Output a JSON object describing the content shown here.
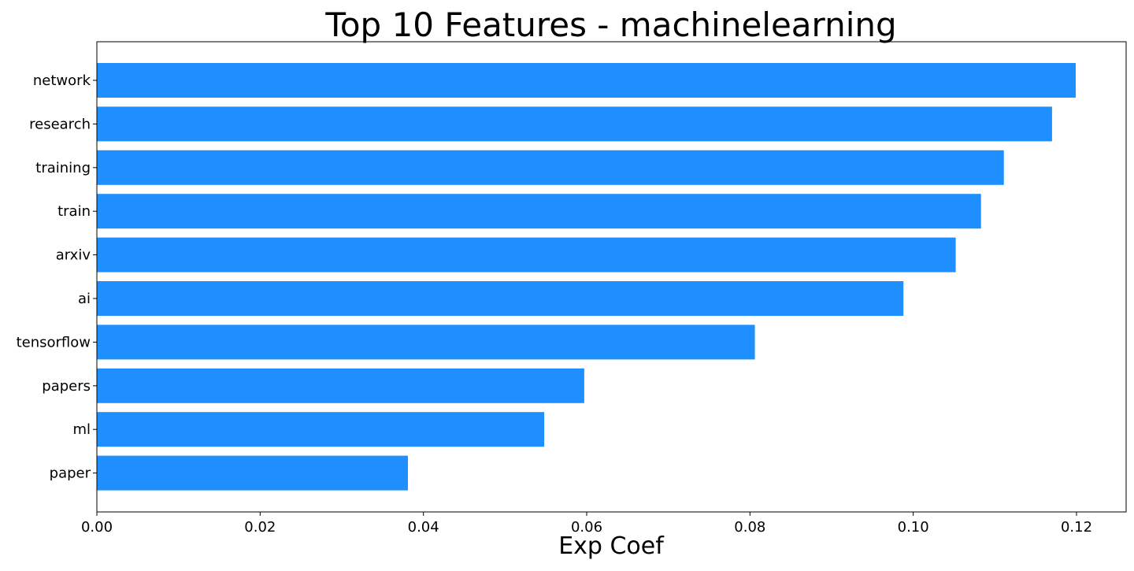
{
  "chart_data": {
    "type": "bar",
    "orientation": "horizontal",
    "title": "Top 10 Features - machinelearning",
    "xlabel": "Exp Coef",
    "ylabel": "",
    "xlim": [
      0.0,
      0.126
    ],
    "xticks": [
      0.0,
      0.02,
      0.04,
      0.06,
      0.08,
      0.1,
      0.12
    ],
    "xtick_labels": [
      "0.00",
      "0.02",
      "0.04",
      "0.06",
      "0.08",
      "0.10",
      "0.12"
    ],
    "grid": false,
    "bar_color": "#1f8fff",
    "categories": [
      "network",
      "research",
      "training",
      "train",
      "arxiv",
      "ai",
      "tensorflow",
      "papers",
      "ml",
      "paper"
    ],
    "values": [
      0.1199,
      0.117,
      0.1111,
      0.1083,
      0.1052,
      0.0988,
      0.0806,
      0.0597,
      0.0548,
      0.0381
    ]
  }
}
